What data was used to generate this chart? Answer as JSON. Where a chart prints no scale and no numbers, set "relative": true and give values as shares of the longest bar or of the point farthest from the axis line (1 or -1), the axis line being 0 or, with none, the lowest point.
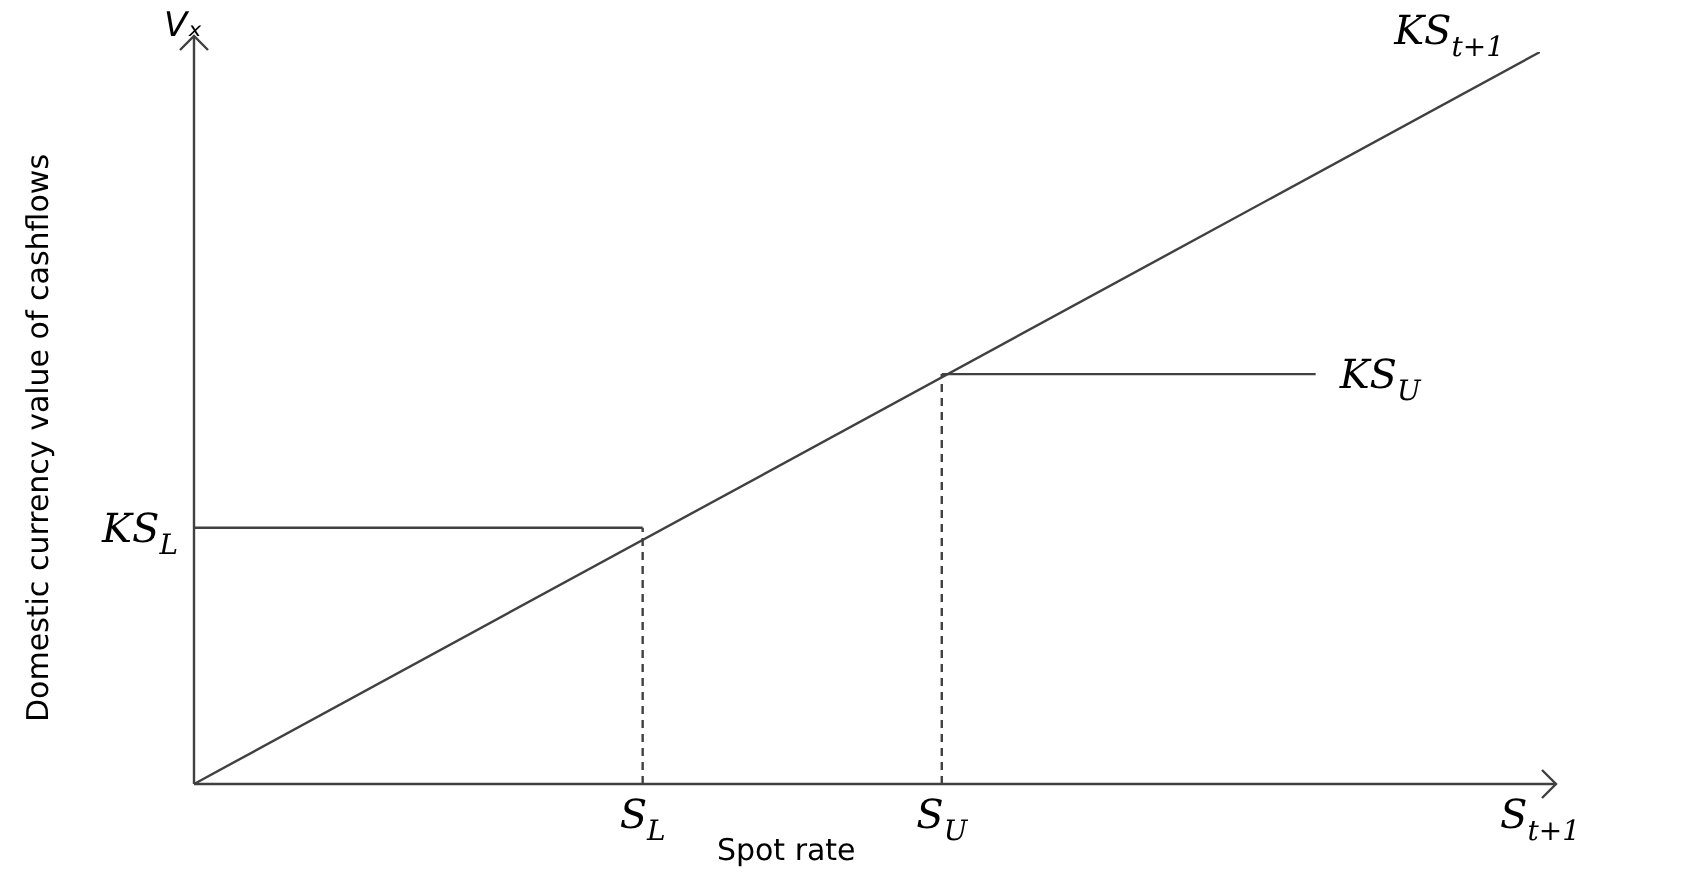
{
  "chart_data": {
    "type": "line",
    "relative": true,
    "xlabel": "Spot rate",
    "ylabel": "Domestic currency value of cashflows",
    "annotations": [
      "Vₓ"
    ],
    "categories": [
      null,
      null,
      null,
      null,
      null,
      null,
      "S$_{L}$",
      null,
      null,
      null,
      "S$_{U}$",
      null,
      null,
      null,
      null,
      null,
      null,
      null,
      "S$_{t+1}$"
    ],
    "tick_labels": "x",
    "legend": false,
    "marker": "none",
    "series": [
      {
        "name": "KS$_{t+1}$",
        "color": "#404040",
        "values": [
          0,
          null,
          null,
          null,
          null,
          null,
          null,
          null,
          null,
          null,
          null,
          null,
          null,
          null,
          null,
          null,
          null,
          null,
          1
        ]
      },
      {
        "name": "KS$_{U}$",
        "color": "#404040",
        "values": [
          null,
          null,
          null,
          null,
          null,
          null,
          null,
          null,
          null,
          null,
          0.56,
          0.56,
          0.56,
          0.56,
          0.56,
          0.56,
          null,
          null,
          null
        ]
      },
      {
        "name": "KS$_{L}$",
        "color": "#404040",
        "values": [
          0.35,
          0.35,
          0.35,
          0.35,
          0.35,
          0.35,
          0.35,
          null,
          null,
          null,
          null,
          null,
          null,
          null,
          null,
          null,
          null,
          null,
          null
        ]
      },
      {
        "color": "#404040",
        "x": [
          "S$_{L}$",
          "S$_{L}$"
        ],
        "values": [
          0,
          0.35
        ],
        "line_style": "dashed"
      },
      {
        "color": "#404040",
        "x": [
          "S$_{U}$",
          "S$_{U}$"
        ],
        "values": [
          0,
          0.56
        ],
        "line_style": "dashed"
      }
    ]
  }
}
